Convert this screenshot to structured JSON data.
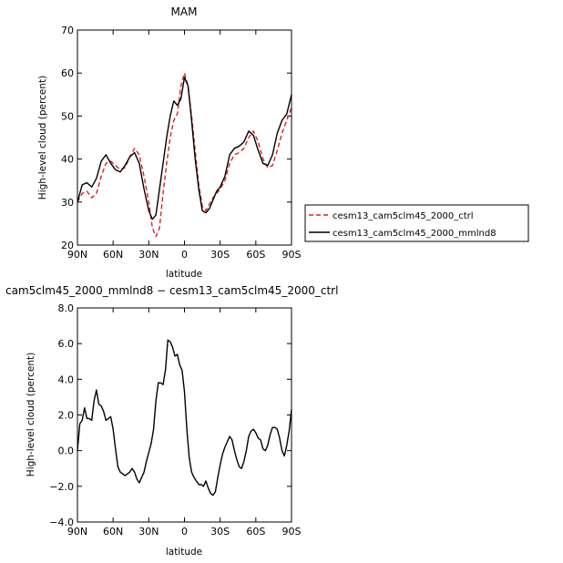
{
  "chart_data": [
    {
      "type": "line",
      "title": "MAM",
      "xlabel": "latitude",
      "ylabel": "High-level cloud (percent)",
      "xlim": [
        90,
        -90
      ],
      "ylim": [
        20,
        70
      ],
      "x_ticks": [
        90,
        60,
        30,
        0,
        -30,
        -60,
        -90
      ],
      "x_tick_labels": [
        "90N",
        "60N",
        "30N",
        "0",
        "30S",
        "60S",
        "90S"
      ],
      "y_ticks": [
        20,
        30,
        40,
        50,
        60,
        70
      ],
      "y_tick_labels": [
        "20",
        "30",
        "40",
        "50",
        "60",
        "70"
      ],
      "grid": false,
      "legend_placement": "right",
      "series": [
        {
          "name": "cesm13_cam5clm45_2000_ctrl",
          "color": "#e02020",
          "dash": "dashed",
          "x": [
            90,
            86,
            82,
            78,
            74,
            70,
            66,
            62,
            58,
            54,
            50,
            46,
            42,
            38,
            34,
            30,
            27,
            24,
            21,
            18,
            15,
            12,
            9,
            6,
            3,
            0,
            -3,
            -6,
            -9,
            -12,
            -15,
            -18,
            -21,
            -24,
            -27,
            -30,
            -34,
            -38,
            -42,
            -46,
            -50,
            -54,
            -58,
            -62,
            -66,
            -70,
            -74,
            -78,
            -82,
            -86,
            -90
          ],
          "values": [
            30,
            32,
            32.5,
            31,
            32,
            36,
            39,
            39.5,
            38.5,
            37.5,
            38,
            40.5,
            42.5,
            41,
            36,
            30,
            24,
            22,
            24,
            32,
            39,
            45,
            49,
            50.5,
            57,
            60,
            57,
            50,
            42,
            34,
            29,
            28,
            29.5,
            31,
            32,
            33,
            35,
            39,
            41,
            41.5,
            42.5,
            45,
            46.5,
            44,
            40,
            38,
            38.5,
            42,
            46,
            49,
            52
          ]
        },
        {
          "name": "cesm13_cam5clm45_2000_mmlnd8",
          "color": "#000000",
          "dash": "solid",
          "x": [
            90,
            86,
            82,
            78,
            74,
            70,
            66,
            62,
            58,
            54,
            50,
            46,
            42,
            38,
            34,
            30,
            27,
            24,
            21,
            18,
            15,
            12,
            9,
            6,
            3,
            0,
            -3,
            -6,
            -9,
            -12,
            -15,
            -18,
            -21,
            -24,
            -27,
            -30,
            -34,
            -38,
            -42,
            -46,
            -50,
            -54,
            -58,
            -62,
            -66,
            -70,
            -74,
            -78,
            -82,
            -86,
            -90
          ],
          "values": [
            30,
            34,
            34.5,
            33.5,
            35.5,
            39.5,
            41,
            39,
            37.5,
            37,
            38.5,
            40.5,
            41.5,
            39,
            33,
            28,
            26,
            27,
            33,
            39,
            45,
            50,
            53.5,
            52.5,
            54,
            59,
            57,
            49,
            40,
            33,
            28,
            27.5,
            28.5,
            30.5,
            32.5,
            33.5,
            36,
            41,
            42.5,
            43,
            44,
            46.5,
            45.5,
            42,
            39,
            38.5,
            41,
            46,
            49,
            50.5,
            55
          ]
        }
      ]
    },
    {
      "type": "line",
      "title": "cam5clm45_2000_mmlnd8 − cesm13_cam5clm45_2000_ctrl",
      "xlabel": "latitude",
      "ylabel": "High-level cloud (percent)",
      "xlim": [
        90,
        -90
      ],
      "ylim": [
        -4,
        8
      ],
      "x_ticks": [
        90,
        60,
        30,
        0,
        -30,
        -60,
        -90
      ],
      "x_tick_labels": [
        "90N",
        "60N",
        "30N",
        "0",
        "30S",
        "60S",
        "90S"
      ],
      "y_ticks": [
        -4,
        -2,
        0,
        2,
        4,
        6,
        8
      ],
      "y_tick_labels": [
        "−4.0",
        "−2.0",
        "0.0",
        "2.0",
        "4.0",
        "6.0",
        "8.0"
      ],
      "grid": false,
      "series": [
        {
          "color": "#000000",
          "dash": "solid",
          "x": [
            90,
            88,
            86,
            84,
            82,
            80,
            78,
            76,
            74,
            72,
            70,
            68,
            66,
            64,
            62,
            60,
            58,
            56,
            54,
            52,
            50,
            48,
            46,
            44,
            42,
            40,
            38,
            36,
            34,
            32,
            30,
            28,
            26,
            24,
            22,
            20,
            18,
            16,
            14,
            12,
            10,
            8,
            6,
            4,
            2,
            0,
            -2,
            -4,
            -6,
            -8,
            -10,
            -12,
            -14,
            -16,
            -18,
            -20,
            -22,
            -24,
            -26,
            -28,
            -30,
            -32,
            -34,
            -36,
            -38,
            -40,
            -42,
            -44,
            -46,
            -48,
            -50,
            -52,
            -54,
            -56,
            -58,
            -60,
            -62,
            -64,
            -66,
            -68,
            -70,
            -72,
            -74,
            -76,
            -78,
            -80,
            -82,
            -84,
            -86,
            -88,
            -90
          ],
          "values": [
            0,
            1.5,
            1.7,
            2.4,
            1.8,
            1.8,
            1.7,
            2.8,
            3.4,
            2.6,
            2.5,
            2.2,
            1.7,
            1.8,
            1.9,
            1.2,
            0.1,
            -0.9,
            -1.2,
            -1.3,
            -1.4,
            -1.3,
            -1.2,
            -1.0,
            -1.2,
            -1.6,
            -1.8,
            -1.5,
            -1.2,
            -0.6,
            -0.1,
            0.4,
            1.2,
            2.8,
            3.8,
            3.8,
            3.7,
            4.5,
            6.2,
            6.1,
            5.8,
            5.3,
            5.4,
            4.8,
            4.5,
            3.3,
            1.2,
            -0.4,
            -1.2,
            -1.5,
            -1.7,
            -1.9,
            -1.9,
            -2.0,
            -1.7,
            -2.1,
            -2.4,
            -2.5,
            -2.3,
            -1.5,
            -0.8,
            -0.2,
            0.2,
            0.5,
            0.8,
            0.6,
            0.0,
            -0.5,
            -0.9,
            -1.0,
            -0.6,
            0.0,
            0.8,
            1.1,
            1.2,
            1.0,
            0.7,
            0.6,
            0.1,
            0.0,
            0.3,
            0.9,
            1.3,
            1.3,
            1.2,
            0.7,
            0.0,
            -0.3,
            0.3,
            1.1,
            2.3
          ]
        }
      ]
    }
  ]
}
